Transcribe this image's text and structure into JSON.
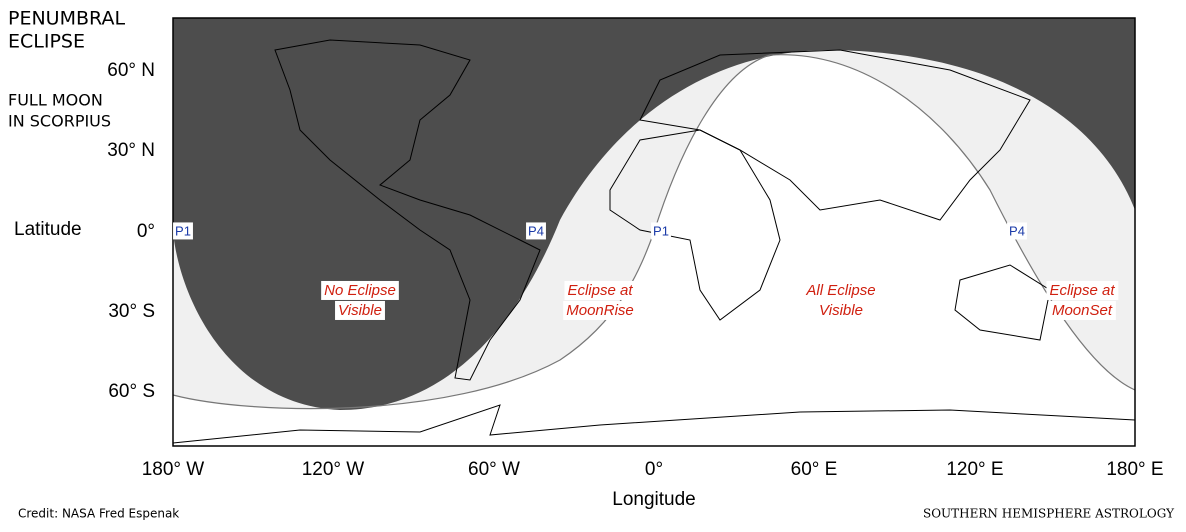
{
  "header": {
    "title_lines": [
      "PENUMBRAL",
      "ECLIPSE"
    ],
    "subtitle_lines": [
      "FULL MOON",
      "IN SCORPIUS"
    ]
  },
  "axes": {
    "y_label": "Latitude",
    "x_label": "Longitude",
    "y_ticks": [
      "60° N",
      "30° N",
      "0°",
      "30° S",
      "60° S"
    ],
    "x_ticks": [
      "180° W",
      "120° W",
      "60° W",
      "0°",
      "60° E",
      "120° E",
      "180° E"
    ]
  },
  "contacts": [
    "P1",
    "P4",
    "P1",
    "P4"
  ],
  "regions": [
    [
      "No Eclipse",
      "Visible"
    ],
    [
      "Eclipse at",
      "MoonRise"
    ],
    [
      "All Eclipse",
      "Visible"
    ],
    [
      "Eclipse at",
      "MoonSet"
    ]
  ],
  "footer": {
    "credit": "Credit: NASA Fred Espenak",
    "brand": "SOUTHERN HEMISPHERE ASTROLOGY"
  }
}
